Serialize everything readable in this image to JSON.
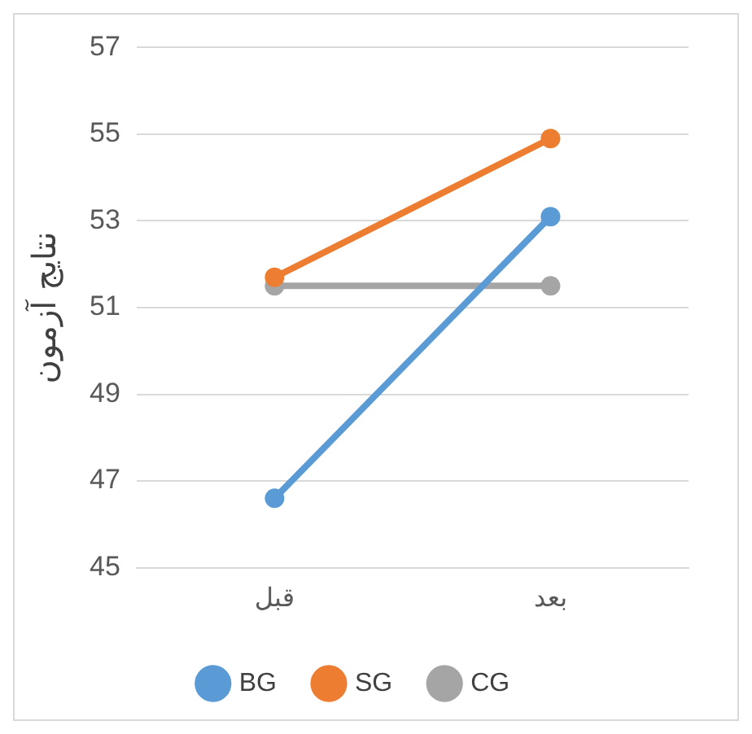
{
  "chart_data": {
    "type": "line",
    "ylabel": "نتایج آزمون",
    "categories": [
      "قبل",
      "بعد"
    ],
    "series": [
      {
        "name": "BG",
        "color": "#5b9bd5",
        "values": [
          46.6,
          53.1
        ]
      },
      {
        "name": "SG",
        "color": "#ed7d31",
        "values": [
          51.7,
          54.9
        ]
      },
      {
        "name": "CG",
        "color": "#a5a5a5",
        "values": [
          51.5,
          51.5
        ]
      }
    ],
    "ylim": [
      45,
      57
    ],
    "yticks": [
      45,
      47,
      49,
      51,
      53,
      55,
      57
    ],
    "grid": "y",
    "legend": "bottom",
    "marker": "circle",
    "line_style": "solid"
  }
}
